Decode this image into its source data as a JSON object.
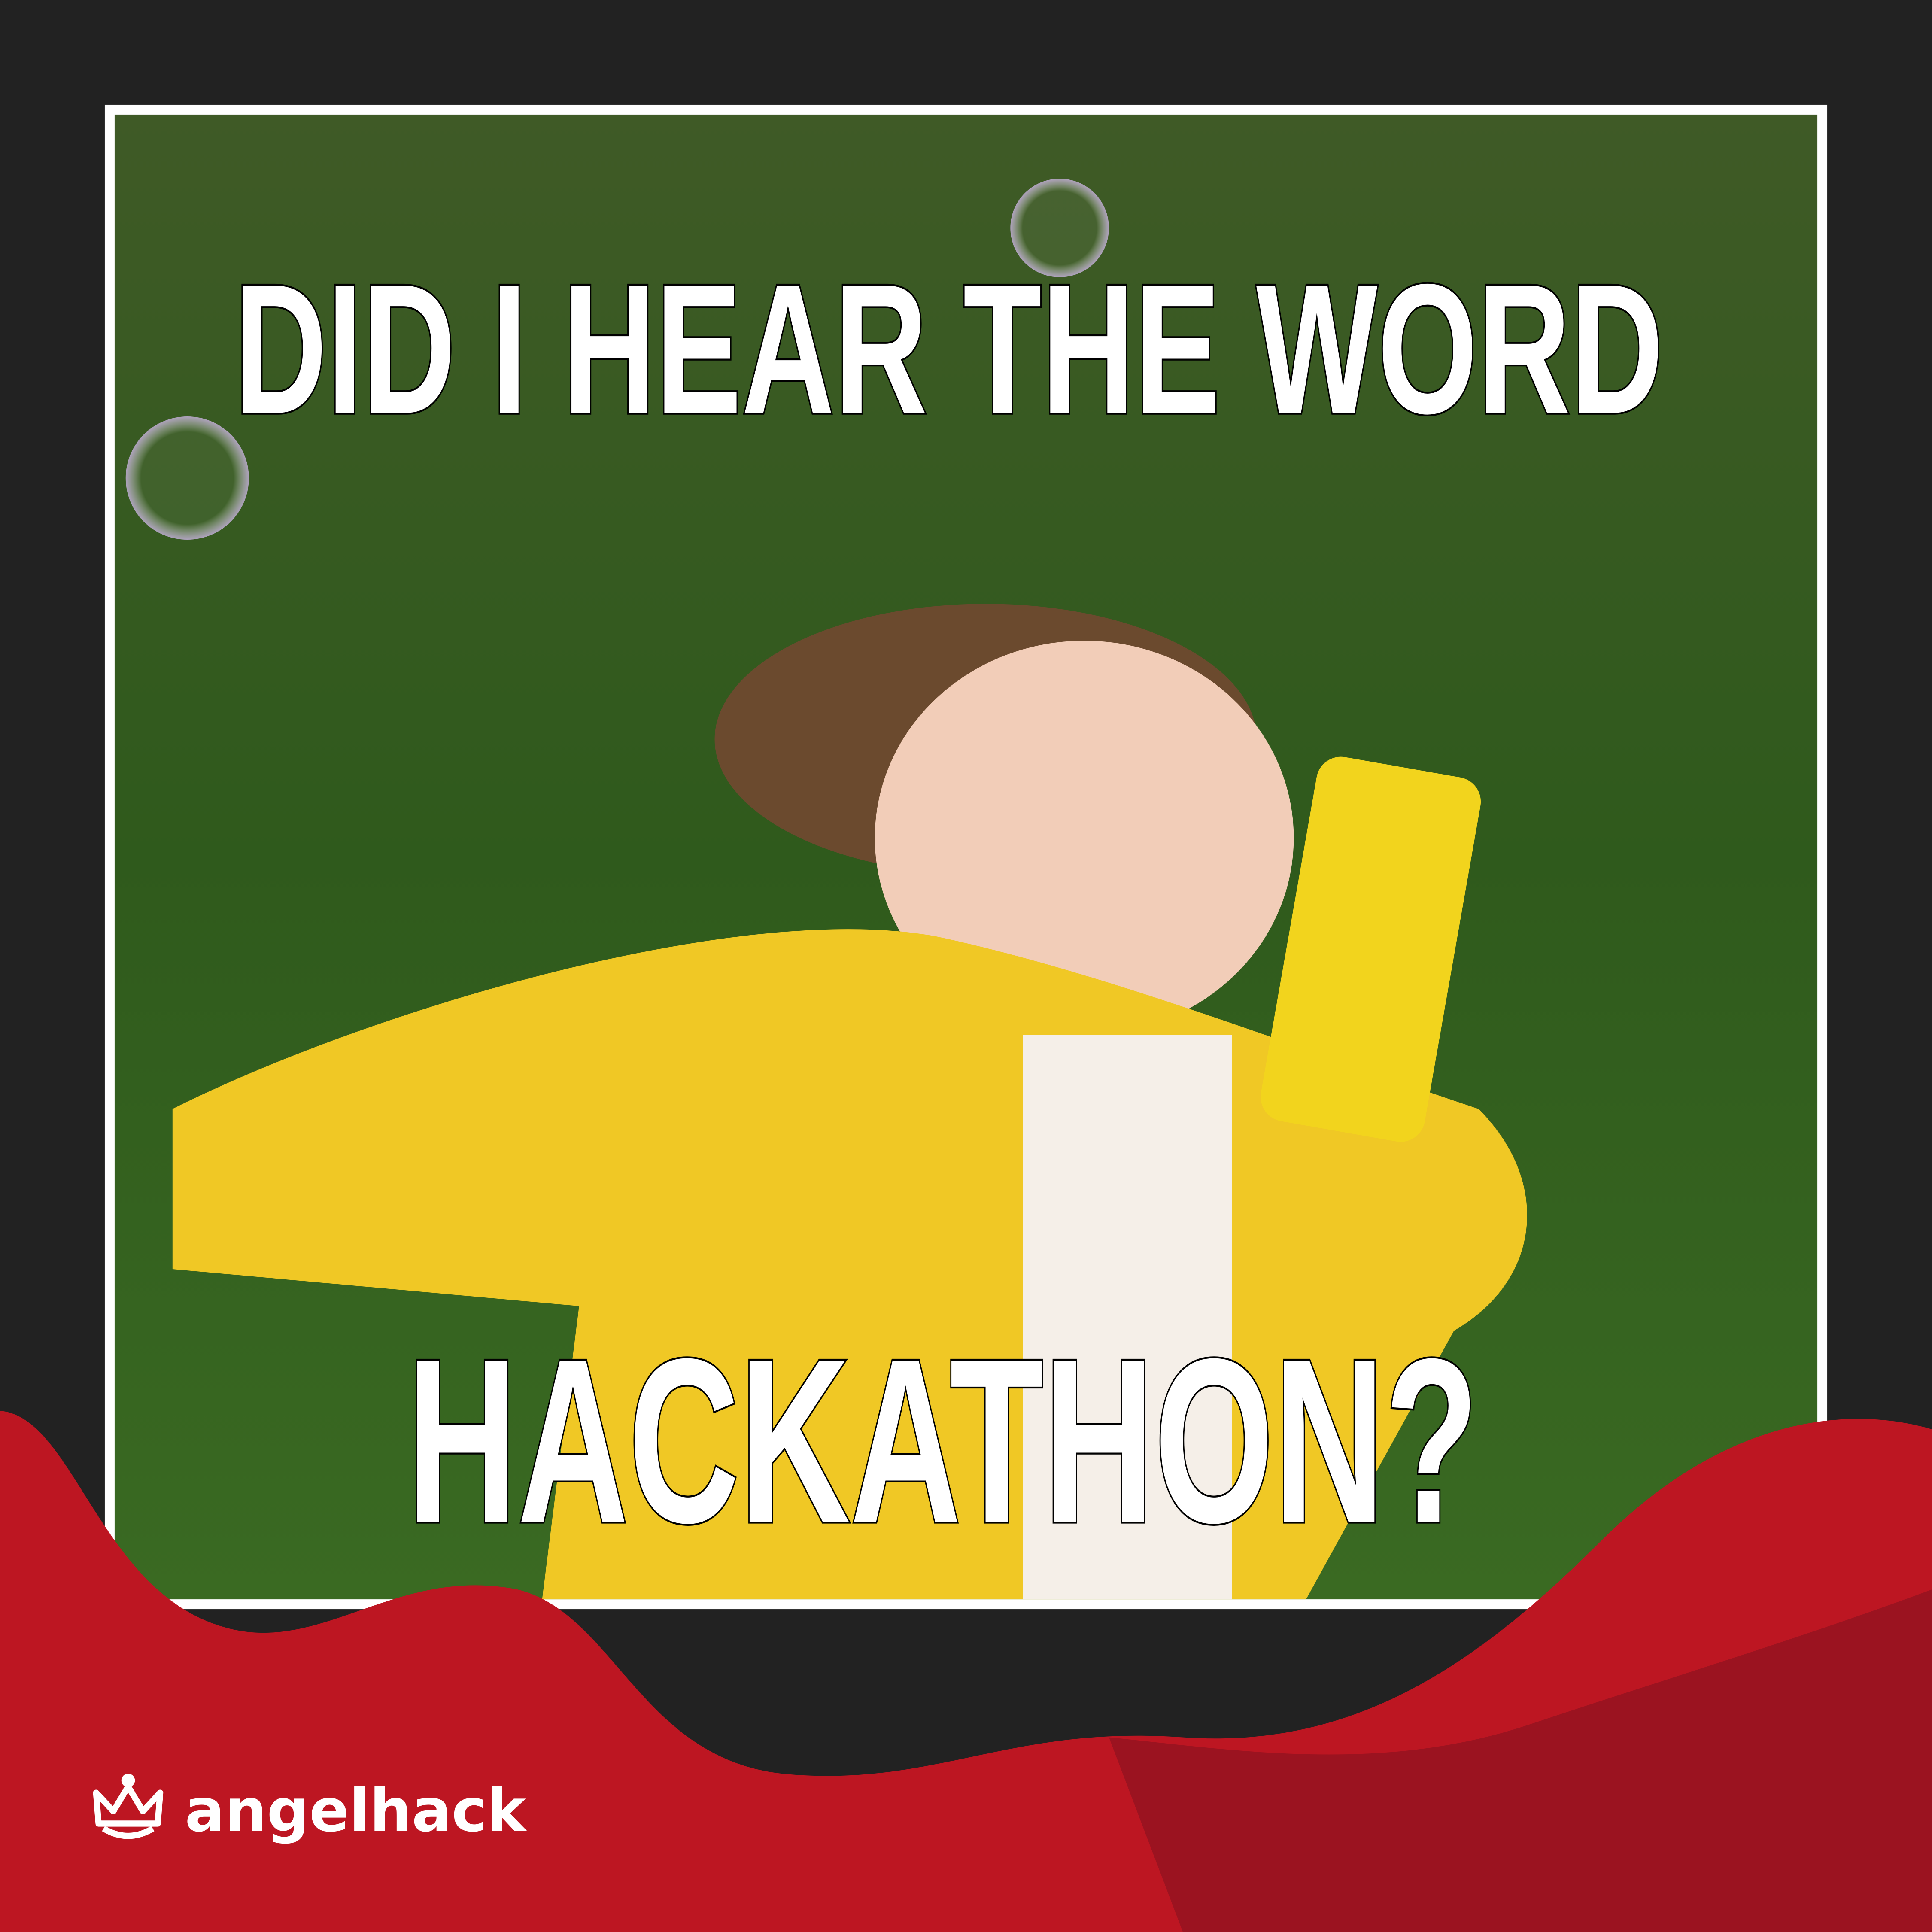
{
  "meme": {
    "top_text": "DID I HEAR THE WORD",
    "bottom_text": "HACKATHON?"
  },
  "brand": {
    "name": "angelhack"
  }
}
